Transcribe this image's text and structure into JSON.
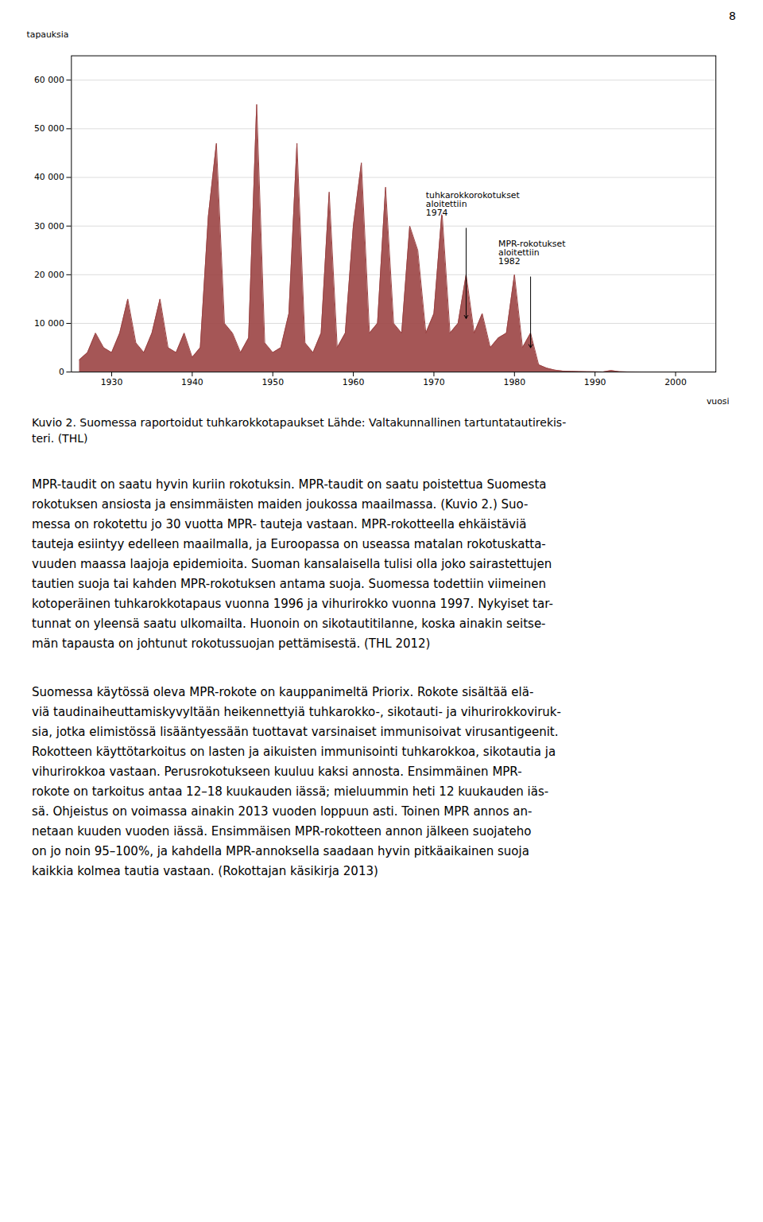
{
  "chart_data": {
    "type": "area",
    "x_label": "vuosi",
    "y_label": "tapauksia",
    "x": [
      1926,
      1927,
      1928,
      1929,
      1930,
      1931,
      1932,
      1933,
      1934,
      1935,
      1936,
      1937,
      1938,
      1939,
      1940,
      1941,
      1942,
      1943,
      1944,
      1945,
      1946,
      1947,
      1948,
      1949,
      1950,
      1951,
      1952,
      1953,
      1954,
      1955,
      1956,
      1957,
      1958,
      1959,
      1960,
      1961,
      1962,
      1963,
      1964,
      1965,
      1966,
      1967,
      1968,
      1969,
      1970,
      1971,
      1972,
      1973,
      1974,
      1975,
      1976,
      1977,
      1978,
      1979,
      1980,
      1981,
      1982,
      1983,
      1984,
      1985,
      1986,
      1987,
      1988,
      1989,
      1990,
      1991,
      1992,
      1993,
      1994,
      1995,
      1996,
      1997,
      1998,
      1999,
      2000,
      2001,
      2002,
      2003,
      2004,
      2005
    ],
    "values": [
      2500,
      4000,
      8000,
      5000,
      4000,
      8000,
      15000,
      6000,
      4000,
      8000,
      15000,
      5000,
      4000,
      8000,
      3000,
      5000,
      32000,
      47000,
      10000,
      8000,
      4000,
      7000,
      55000,
      6000,
      4000,
      5000,
      12000,
      47000,
      6000,
      4000,
      8000,
      37000,
      5000,
      8000,
      30000,
      43000,
      8000,
      10000,
      38000,
      10000,
      8000,
      30000,
      25000,
      8000,
      12000,
      33000,
      8000,
      10000,
      20000,
      8000,
      12000,
      5000,
      7000,
      8000,
      20000,
      5000,
      8000,
      1500,
      800,
      400,
      200,
      150,
      100,
      80,
      50,
      30,
      300,
      80,
      40,
      30,
      20,
      10,
      5,
      3,
      2,
      1,
      1,
      1,
      1,
      1
    ],
    "color": "#9B4444",
    "xlim": [
      1925,
      2005
    ],
    "xticks": [
      1930,
      1940,
      1950,
      1960,
      1970,
      1980,
      1990,
      2000
    ],
    "ylim": [
      0,
      65000
    ],
    "yticks": [
      0,
      {
        "value": 10000,
        "label": "10 000"
      },
      {
        "value": 20000,
        "label": "20 000"
      },
      {
        "value": 30000,
        "label": "30 000"
      },
      {
        "value": 40000,
        "label": "40 000"
      },
      {
        "value": 50000,
        "label": "50 000"
      },
      {
        "value": 60000,
        "label": "60 000"
      }
    ],
    "grid": true,
    "annotations": [
      {
        "text": "tuhkarokkorokotukset\naloitettiin\n1974",
        "x": 1974,
        "y": 11000,
        "text_x": 1969,
        "text_y": 37000
      },
      {
        "text": "MPR-rokotukset\naloitettiin\n1982",
        "x": 1982,
        "y": 5000,
        "text_x": 1978,
        "text_y": 27000
      }
    ]
  },
  "page": {
    "number": "8",
    "caption": [
      "Kuvio 2. Suomessa raportoidut tuhkarokkotapaukset Lähde: Valtakunnallinen tartuntatautirekis-",
      "teri. (THL)"
    ],
    "paragraphs": [
      [
        "MPR-taudit on saatu hyvin kuriin rokotuksin. MPR-taudit on saatu poistettua Suomesta",
        "rokotuksen ansiosta ja ensimmäisten maiden joukossa maailmassa. (Kuvio 2.) Suo-",
        "messa on rokotettu jo 30 vuotta MPR- tauteja vastaan. MPR-rokotteella ehkäistäviä",
        "tauteja esiintyy edelleen maailmalla, ja Euroopassa on useassa matalan rokotuskatta-",
        "vuuden maassa laajoja epidemioita. Suoman kansalaisella tulisi olla joko sairastettujen",
        "tautien suoja tai kahden MPR-rokotuksen antama suoja. Suomessa todettiin viimeinen",
        "kotoperäinen tuhkarokkotapaus vuonna 1996 ja vihurirokko vuonna 1997. Nykyiset tar-",
        "tunnat on yleensä saatu ulkomailta. Huonoin on sikotautitilanne, koska ainakin seitse-",
        "män tapausta on johtunut rokotussuojan pettämisestä. (THL 2012)"
      ],
      [
        "Suomessa käytössä oleva MPR-rokote on kauppanimeltä Priorix. Rokote sisältää elä-",
        "viä taudinaiheuttamiskyvyltään heikennettyiä tuhkarokko-, sikotauti- ja vihurirokkoviruk-",
        "sia, jotka elimistössä lisääntyessään tuottavat varsinaiset immunisoivat virusantigeenit.",
        "Rokotteen käyttötarkoitus on lasten ja aikuisten immunisointi tuhkarokkoa, sikotautia ja",
        "vihurirokkoa vastaan. Perusrokotukseen kuuluu kaksi annosta. Ensimmäinen MPR-",
        "rokote on tarkoitus antaa 12–18 kuukauden iässä; mieluummin heti 12 kuukauden iäs-",
        "sä. Ohjeistus on voimassa ainakin 2013 vuoden loppuun asti. Toinen MPR annos an-",
        "netaan kuuden vuoden iässä. Ensimmäisen MPR-rokotteen annon jälkeen suojateho",
        "on jo noin 95–100%, ja kahdella MPR-annoksella saadaan hyvin pitkäaikainen suoja",
        "kaikkia kolmea tautia vastaan. (Rokottajan käsikirja 2013)"
      ]
    ]
  }
}
